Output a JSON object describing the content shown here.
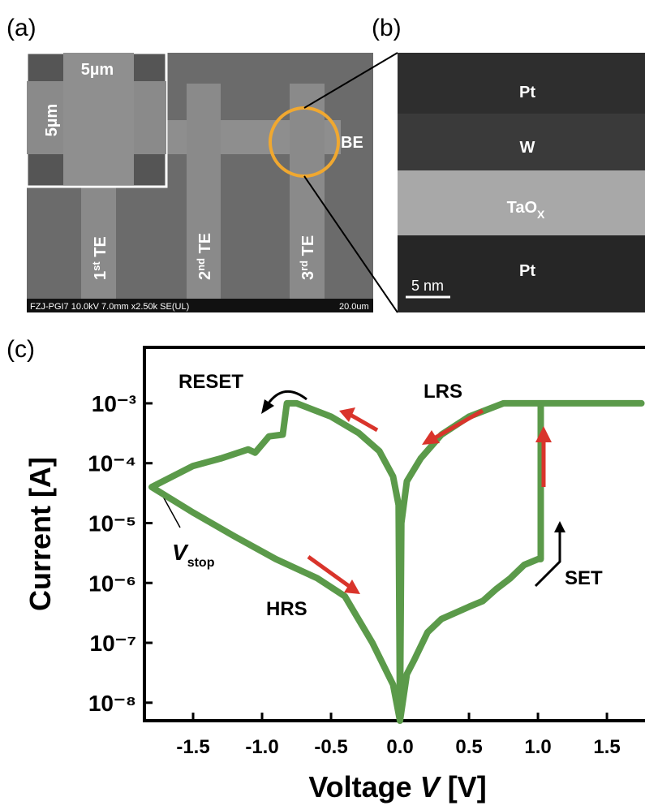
{
  "panels": {
    "a": {
      "label": "(a)",
      "inset_width": "5µm",
      "inset_height": "5µm",
      "be": "BE",
      "te1": {
        "num": "1",
        "sup": "st",
        "rest": " TE"
      },
      "te2": {
        "num": "2",
        "sup": "nd",
        "rest": " TE"
      },
      "te3": {
        "num": "3",
        "sup": "rd",
        "rest": " TE"
      },
      "info": "FZJ-PGI7 10.0kV 7.0mm x2.50k SE(UL)",
      "scale": "20.0um"
    },
    "b": {
      "label": "(b)",
      "layer1": "Pt",
      "layer2": "W",
      "layer3": {
        "base": "TaO",
        "sub": "X"
      },
      "layer4": "Pt",
      "scale": "5 nm"
    },
    "c": {
      "label": "(c)"
    }
  },
  "chart_data": {
    "type": "line",
    "yscale": "log",
    "x_label": [
      "Voltage ",
      "V",
      " [V]"
    ],
    "y_label": "Current [A]",
    "xlim": [
      -1.853,
      1.776
    ],
    "ylim": [
      5e-09,
      0.0086
    ],
    "xticks": [
      -1.5,
      {
        "value": -1.0,
        "label": "-1.0"
      },
      -0.5,
      {
        "value": 0,
        "label": "0.0"
      },
      0.5,
      {
        "value": 1.0,
        "label": "1.0"
      },
      1.5
    ],
    "yticks": [
      {
        "value": 1e-08,
        "label": "10⁻⁸"
      },
      {
        "value": 1e-07,
        "label": "10⁻⁷"
      },
      {
        "value": 1e-06,
        "label": "10⁻⁶"
      },
      {
        "value": 1e-05,
        "label": "10⁻⁵"
      },
      {
        "value": 0.0001,
        "label": "10⁻⁴"
      },
      {
        "value": 0.001,
        "label": "10⁻³"
      }
    ],
    "annotations": {
      "reset": "RESET",
      "lrs": "LRS",
      "hrs": "HRS",
      "set": "SET",
      "vstop": {
        "symbol": "V",
        "sub": "stop"
      }
    },
    "series": [
      {
        "color": "#5b9a4a",
        "x": [
          0,
          0.05,
          0.1,
          0.2,
          0.3,
          0.5,
          0.6,
          0.7,
          0.8,
          0.9,
          1.0,
          1.02,
          1.02,
          1.75,
          0.75,
          0.5,
          0.3,
          0.15,
          0.05,
          0.01,
          0,
          -0.01,
          -0.05,
          -0.15,
          -0.3,
          -0.5,
          -0.75,
          -0.82,
          -0.85,
          -0.95,
          -1.05,
          -1.1,
          -1.3,
          -1.5,
          -1.65,
          -1.8,
          -1.5,
          -1.2,
          -0.9,
          -0.6,
          -0.4,
          -0.2,
          -0.05,
          0
        ],
        "values": [
          5e-09,
          3e-08,
          5e-08,
          1.5e-07,
          2.5e-07,
          4e-07,
          5e-07,
          8e-07,
          1.2e-06,
          2e-06,
          2.5e-06,
          2.5e-06,
          0.001,
          0.001,
          0.001,
          0.0006,
          0.0003,
          0.00012,
          5e-05,
          1e-05,
          5e-09,
          2e-05,
          6e-05,
          0.00016,
          0.00032,
          0.0006,
          0.001,
          0.001,
          0.0003,
          0.00028,
          0.00015,
          0.00017,
          0.00012,
          9e-05,
          6e-05,
          4e-05,
          1.5e-05,
          6e-06,
          2.5e-06,
          1.2e-06,
          6e-07,
          1e-07,
          2e-08,
          5e-09
        ]
      }
    ]
  }
}
